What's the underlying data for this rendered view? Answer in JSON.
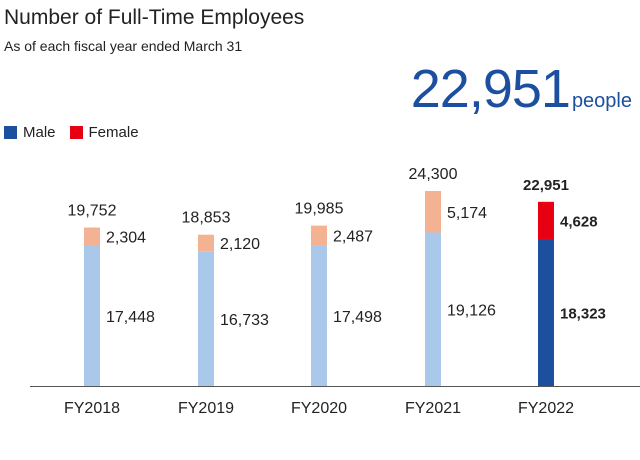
{
  "headline": {
    "value": "22,951",
    "unit": "people"
  },
  "colors": {
    "male_past": "#a9c8ea",
    "female_past": "#f3b392",
    "male_current": "#1d4f9f",
    "female_current": "#e60012",
    "axis": "#555555"
  },
  "chart_data": {
    "type": "bar",
    "stacked": true,
    "title": "Number of Full-Time Employees",
    "subtitle": "As of each fiscal year ended March 31",
    "categories": [
      "FY2018",
      "FY2019",
      "FY2020",
      "FY2021",
      "FY2022"
    ],
    "series": [
      {
        "name": "Male",
        "values": [
          17448,
          16733,
          17498,
          19126,
          18323
        ]
      },
      {
        "name": "Female",
        "values": [
          2304,
          2120,
          2487,
          5174,
          4628
        ]
      }
    ],
    "totals": [
      19752,
      18853,
      19985,
      24300,
      22951
    ],
    "value_labels": {
      "male": [
        "17,448",
        "16,733",
        "17,498",
        "19,126",
        "18,323"
      ],
      "female": [
        "2,304",
        "2,120",
        "2,487",
        "5,174",
        "4,628"
      ],
      "total": [
        "19,752",
        "18,853",
        "19,985",
        "24,300",
        "22,951"
      ]
    },
    "highlight_index": 4,
    "legend": [
      "Male",
      "Female"
    ],
    "legend_position": "top-left",
    "ylim": [
      0,
      24300
    ],
    "grid": false
  }
}
